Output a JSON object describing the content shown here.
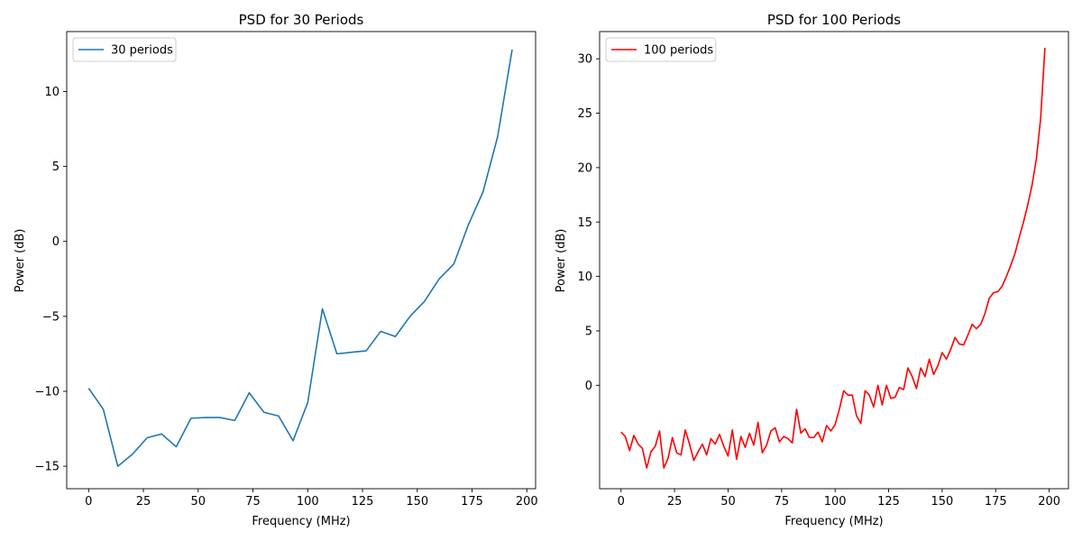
{
  "chart_data": [
    {
      "type": "line",
      "title": "PSD for 30 Periods",
      "xlabel": "Frequency (MHz)",
      "ylabel": "Power (dB)",
      "xlim": [
        -10,
        204
      ],
      "ylim": [
        -16.5,
        14
      ],
      "xticks": [
        0,
        25,
        50,
        75,
        100,
        125,
        150,
        175,
        200
      ],
      "yticks": [
        -15,
        -10,
        -5,
        0,
        5,
        10
      ],
      "xtick_labels": [
        "0",
        "25",
        "50",
        "75",
        "100",
        "125",
        "150",
        "175",
        "200"
      ],
      "ytick_labels": [
        "−15",
        "−10",
        "−5",
        "0",
        "5",
        "10"
      ],
      "grid": false,
      "legend_position": "top-left",
      "series": [
        {
          "name": "30 periods",
          "color": "#1f77b4",
          "x": [
            0,
            6.7,
            13.3,
            20,
            26.7,
            33.3,
            40,
            46.7,
            53.3,
            60,
            66.7,
            73.3,
            80,
            86.7,
            93.3,
            100,
            106.7,
            113.3,
            120,
            126.7,
            133.3,
            140,
            146.7,
            153.3,
            160,
            166.7,
            173.3,
            180,
            186.7,
            193.3
          ],
          "y": [
            -9.8,
            -11.2,
            -15.0,
            -14.2,
            -13.1,
            -12.85,
            -13.7,
            -11.8,
            -11.75,
            -11.75,
            -11.95,
            -10.1,
            -11.4,
            -11.65,
            -13.3,
            -10.75,
            -4.5,
            -7.5,
            -7.4,
            -7.3,
            -6.0,
            -6.35,
            -5.0,
            -4.0,
            -2.5,
            -1.5,
            1.1,
            3.3,
            7.0,
            12.8
          ]
        }
      ]
    },
    {
      "type": "line",
      "title": "PSD for 100 Periods",
      "xlabel": "Frequency (MHz)",
      "ylabel": "Power (dB)",
      "xlim": [
        -10,
        209
      ],
      "ylim": [
        -9.5,
        32.5
      ],
      "xticks": [
        0,
        25,
        50,
        75,
        100,
        125,
        150,
        175,
        200
      ],
      "yticks": [
        0,
        5,
        10,
        15,
        20,
        25,
        30
      ],
      "xtick_labels": [
        "0",
        "25",
        "50",
        "75",
        "100",
        "125",
        "150",
        "175",
        "200"
      ],
      "ytick_labels": [
        "0",
        "5",
        "10",
        "15",
        "20",
        "25",
        "30"
      ],
      "grid": false,
      "legend_position": "top-left",
      "series": [
        {
          "name": "100 periods",
          "color": "#ff0000",
          "x": [
            0,
            2,
            4,
            6,
            8,
            10,
            12,
            14,
            16,
            18,
            20,
            22,
            24,
            26,
            28,
            30,
            32,
            34,
            36,
            38,
            40,
            42,
            44,
            46,
            48,
            50,
            52,
            54,
            56,
            58,
            60,
            62,
            64,
            66,
            68,
            70,
            72,
            74,
            76,
            78,
            80,
            82,
            84,
            86,
            88,
            90,
            92,
            94,
            96,
            98,
            100,
            102,
            104,
            106,
            108,
            110,
            112,
            114,
            116,
            118,
            120,
            122,
            124,
            126,
            128,
            130,
            132,
            134,
            136,
            138,
            140,
            142,
            144,
            146,
            148,
            150,
            152,
            154,
            156,
            158,
            160,
            162,
            164,
            166,
            168,
            170,
            172,
            174,
            176,
            178,
            180,
            182,
            184,
            186,
            188,
            190,
            192,
            194,
            196,
            198
          ],
          "y": [
            -4.3,
            -4.7,
            -6.0,
            -4.6,
            -5.4,
            -5.8,
            -7.6,
            -6.1,
            -5.6,
            -4.2,
            -7.6,
            -6.7,
            -4.8,
            -6.2,
            -6.4,
            -4.1,
            -5.4,
            -6.9,
            -6.1,
            -5.4,
            -6.4,
            -4.9,
            -5.4,
            -4.5,
            -5.6,
            -6.5,
            -4.1,
            -6.8,
            -4.7,
            -5.7,
            -4.4,
            -5.5,
            -3.4,
            -6.2,
            -5.5,
            -4.2,
            -3.9,
            -5.2,
            -4.7,
            -4.9,
            -5.3,
            -2.2,
            -4.4,
            -4.0,
            -4.8,
            -4.8,
            -4.3,
            -5.2,
            -3.7,
            -4.2,
            -3.6,
            -2.2,
            -0.5,
            -0.9,
            -0.9,
            -2.8,
            -3.5,
            -0.5,
            -0.9,
            -2.0,
            0.0,
            -1.8,
            0.0,
            -1.2,
            -1.1,
            -0.2,
            -0.4,
            1.6,
            0.8,
            -0.3,
            1.6,
            0.8,
            2.4,
            1.0,
            1.8,
            3.0,
            2.4,
            3.3,
            4.4,
            3.8,
            3.7,
            4.6,
            5.6,
            5.2,
            5.6,
            6.6,
            8.0,
            8.5,
            8.6,
            9.1,
            10.0,
            11.0,
            12.1,
            13.6,
            15.0,
            16.6,
            18.4,
            20.8,
            24.5,
            31.0
          ]
        }
      ]
    }
  ]
}
